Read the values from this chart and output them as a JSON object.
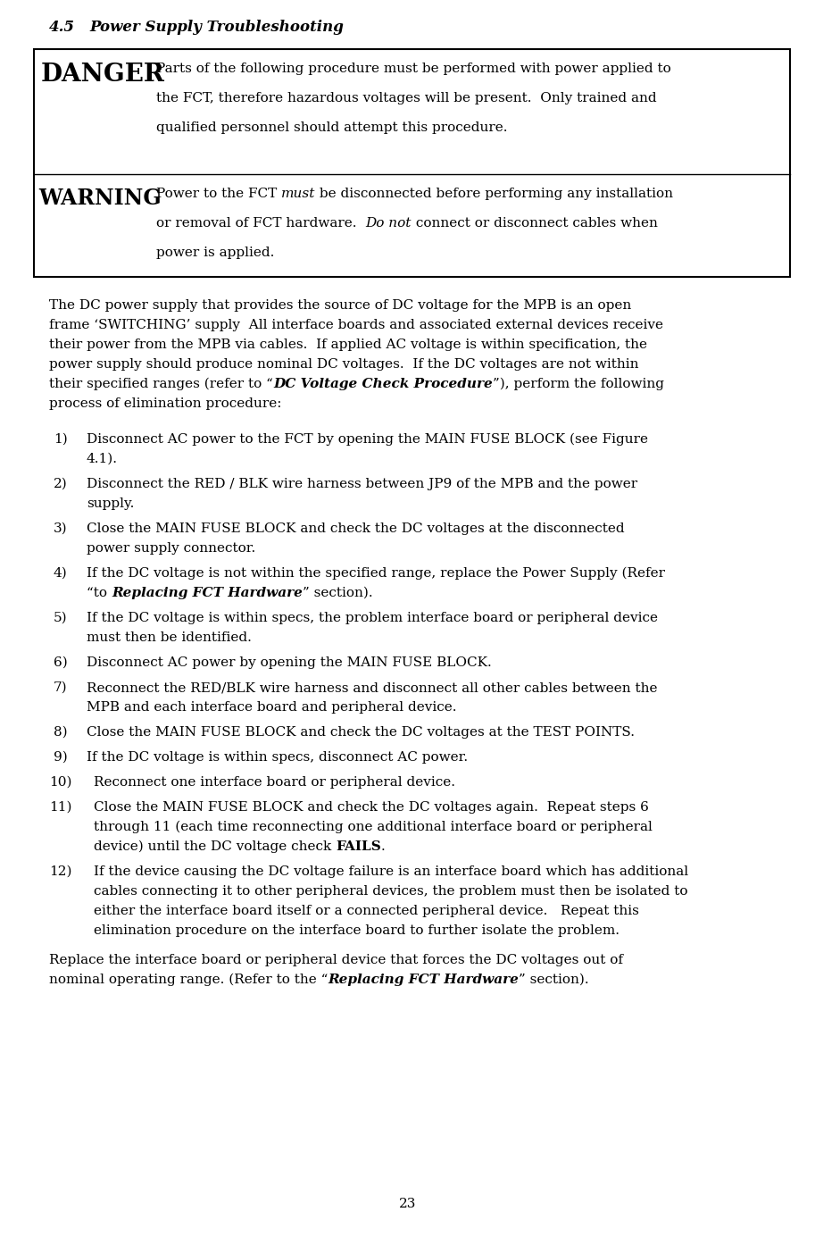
{
  "bg_color": "#ffffff",
  "page_number": "23",
  "section_header_num": "4.5",
  "section_header_title": "Power Supply Troubleshooting",
  "danger_label": "DANGER",
  "danger_text_line1": "Parts of the following procedure must be performed with power applied to",
  "danger_text_line2": "the FCT, therefore hazardous voltages will be present.  Only trained and",
  "danger_text_line3": "qualified personnel should attempt this procedure.",
  "warning_label": "WARNING",
  "warning_line1_a": "Power to the FCT ",
  "warning_line1_b": "must",
  "warning_line1_c": " be disconnected before performing any installation",
  "warning_line2_a": "or removal of FCT hardware.  ",
  "warning_line2_b": "Do not",
  "warning_line2_c": " connect or disconnect cables when",
  "warning_line3": "power is applied.",
  "intro_line1": "The DC power supply that provides the source of DC voltage for the MPB is an open",
  "intro_line2": "frame ‘SWITCHING’ supply  All interface boards and associated external devices receive",
  "intro_line3": "their power from the MPB via cables.  If applied AC voltage is within specification, the",
  "intro_line4": "power supply should produce nominal DC voltages.  If the DC voltages are not within",
  "intro_line5a": "their specified ranges (refer to “",
  "intro_line5b": "DC Voltage Check Procedure",
  "intro_line5c": "”), perform the following",
  "intro_line6": "process of elimination procedure:",
  "list_items": [
    {
      "num": "1)",
      "lines": [
        "Disconnect AC power to the FCT by opening the MAIN FUSE BLOCK (see Figure",
        "4.1)."
      ]
    },
    {
      "num": "2)",
      "lines": [
        "Disconnect the RED / BLK wire harness between JP9 of the MPB and the power",
        "supply."
      ]
    },
    {
      "num": "3)",
      "lines": [
        "Close the MAIN FUSE BLOCK and check the DC voltages at the disconnected",
        "power supply connector."
      ]
    },
    {
      "num": "4)",
      "lines": [
        "If the DC voltage is not within the specified range, replace the Power Supply (Refer",
        [
          "“to ",
          "Replacing FCT Hardware",
          "” section).",
          "bolditalic_mid"
        ]
      ]
    },
    {
      "num": "5)",
      "lines": [
        "If the DC voltage is within specs, the problem interface board or peripheral device",
        "must then be identified."
      ]
    },
    {
      "num": "6)",
      "lines": [
        "Disconnect AC power by opening the MAIN FUSE BLOCK."
      ]
    },
    {
      "num": "7)",
      "lines": [
        "Reconnect the RED/BLK wire harness and disconnect all other cables between the",
        "MPB and each interface board and peripheral device."
      ]
    },
    {
      "num": "8)",
      "lines": [
        "Close the MAIN FUSE BLOCK and check the DC voltages at the TEST POINTS."
      ]
    },
    {
      "num": "9)",
      "lines": [
        "If the DC voltage is within specs, disconnect AC power."
      ]
    },
    {
      "num": "10)",
      "lines": [
        "Reconnect one interface board or peripheral device."
      ]
    },
    {
      "num": "11)",
      "lines": [
        "Close the MAIN FUSE BLOCK and check the DC voltages again.  Repeat steps 6",
        "through 11 (each time reconnecting one additional interface board or peripheral",
        [
          "device) until the DC voltage check ",
          "FAILS",
          ".",
          "bold_mid"
        ]
      ]
    },
    {
      "num": "12)",
      "lines": [
        "If the device causing the DC voltage failure is an interface board which has additional",
        "cables connecting it to other peripheral devices, the problem must then be isolated to",
        "either the interface board itself or a connected peripheral device.   Repeat this",
        "elimination procedure on the interface board to further isolate the problem."
      ]
    }
  ],
  "footer_line1": "Replace the interface board or peripheral device that forces the DC voltages out of",
  "footer_line2a": "nominal operating range. (Refer to the “",
  "footer_line2b": "Replacing FCT Hardware",
  "footer_line2c": "” section).",
  "font_size_header": 12,
  "font_size_body": 11,
  "font_size_danger": 20,
  "font_size_warning": 17
}
